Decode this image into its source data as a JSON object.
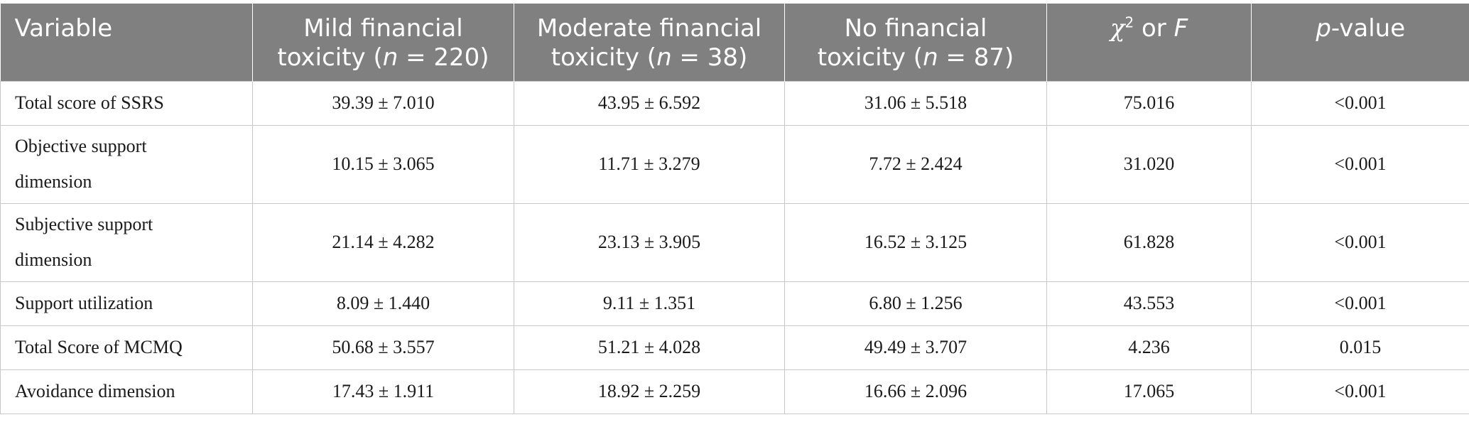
{
  "table": {
    "headers": {
      "variable": "Variable",
      "mild_line1": "Mild financial",
      "mild_line2_pre": "toxicity (",
      "mild_n": "n",
      "mild_line2_post": " = 220)",
      "moderate_line1": "Moderate financial",
      "moderate_line2_pre": "toxicity (",
      "moderate_n": "n",
      "moderate_line2_post": " = 38)",
      "none_line1": "No financial",
      "none_line2_pre": "toxicity (",
      "none_n": "n",
      "none_line2_post": " = 87)",
      "stat_chi": "χ",
      "stat_sup": "2",
      "stat_or": " or ",
      "stat_f": "F",
      "p_italic": "p",
      "p_rest": "-value"
    },
    "rows": [
      {
        "variable": "Total score of SSRS",
        "mild": "39.39 ± 7.010",
        "moderate": "43.95 ± 6.592",
        "none": "31.06 ± 5.518",
        "stat": "75.016",
        "p": "<0.001"
      },
      {
        "variable": "Objective support dimension",
        "mild": "10.15 ± 3.065",
        "moderate": "11.71 ± 3.279",
        "none": "7.72 ± 2.424",
        "stat": "31.020",
        "p": "<0.001"
      },
      {
        "variable": "Subjective support dimension",
        "mild": "21.14 ± 4.282",
        "moderate": "23.13 ± 3.905",
        "none": "16.52 ± 3.125",
        "stat": "61.828",
        "p": "<0.001"
      },
      {
        "variable": "Support utilization",
        "mild": "8.09 ± 1.440",
        "moderate": "9.11 ± 1.351",
        "none": "6.80 ± 1.256",
        "stat": "43.553",
        "p": "<0.001"
      },
      {
        "variable": "Total Score of MCMQ",
        "mild": "50.68 ± 3.557",
        "moderate": "51.21 ± 4.028",
        "none": "49.49 ± 3.707",
        "stat": "4.236",
        "p": "0.015"
      },
      {
        "variable": "Avoidance dimension",
        "mild": "17.43 ± 1.911",
        "moderate": "18.92 ± 2.259",
        "none": "16.66 ± 2.096",
        "stat": "17.065",
        "p": "<0.001"
      }
    ]
  }
}
